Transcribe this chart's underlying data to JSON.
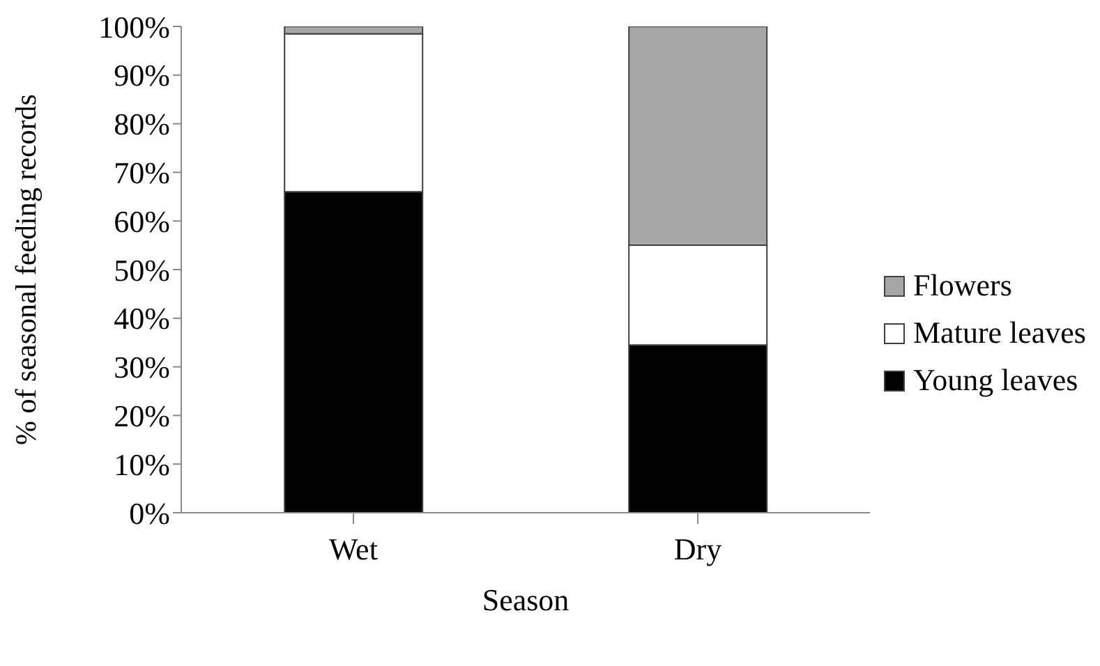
{
  "chart_data": {
    "type": "bar",
    "stacked": true,
    "xlabel": "Season",
    "ylabel": "% of seasonal feeding records",
    "categories": [
      "Wet",
      "Dry"
    ],
    "series": [
      {
        "name": "Young leaves",
        "color": "#000000",
        "values": [
          66,
          34.5
        ]
      },
      {
        "name": "Mature leaves",
        "color": "#ffffff",
        "values": [
          32.5,
          20.5
        ]
      },
      {
        "name": "Flowers",
        "color": "#a6a6a6",
        "values": [
          1.5,
          45
        ]
      }
    ],
    "ylim": [
      0,
      100
    ],
    "yticks": [
      {
        "value": 0,
        "label": "0%"
      },
      {
        "value": 10,
        "label": "10%"
      },
      {
        "value": 20,
        "label": "20%"
      },
      {
        "value": 30,
        "label": "30%"
      },
      {
        "value": 40,
        "label": "40%"
      },
      {
        "value": 50,
        "label": "50%"
      },
      {
        "value": 60,
        "label": "60%"
      },
      {
        "value": 70,
        "label": "70%"
      },
      {
        "value": 80,
        "label": "80%"
      },
      {
        "value": 90,
        "label": "90%"
      },
      {
        "value": 100,
        "label": "100%"
      }
    ],
    "grid": false,
    "legend": "right"
  }
}
